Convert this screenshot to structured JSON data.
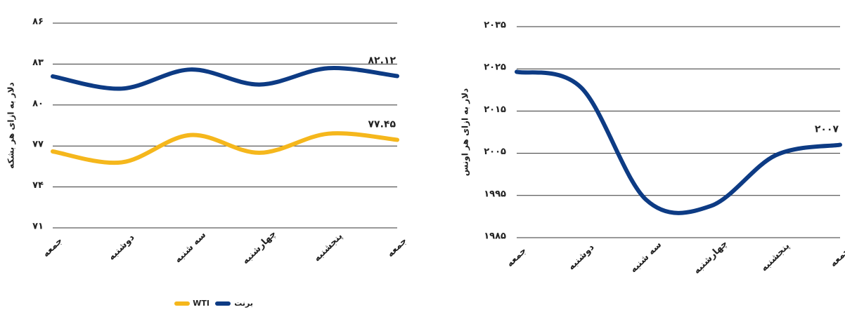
{
  "chart_data": [
    {
      "type": "line",
      "y_label": "دلار به ازای هر بشکه",
      "categories": [
        "جمعه",
        "دوشنبه",
        "سه شنبه",
        "چهارشنبه",
        "پنجشنبه",
        "جمعه"
      ],
      "series": [
        {
          "name": "برنت",
          "color": "#0d3b84",
          "values": [
            82.1,
            81.2,
            82.6,
            81.5,
            82.7,
            82.12
          ],
          "value_labels": [
            null,
            null,
            null,
            null,
            null,
            "۸۲.۱۲"
          ]
        },
        {
          "name": "WTI",
          "color": "#f5b71c",
          "values": [
            76.6,
            75.8,
            77.8,
            76.5,
            77.9,
            77.45
          ],
          "value_labels": [
            null,
            null,
            null,
            null,
            null,
            "۷۷.۴۵"
          ]
        }
      ],
      "ylim": [
        71,
        86
      ],
      "yticks": [
        {
          "value": 71,
          "label": "۷۱"
        },
        {
          "value": 74,
          "label": "۷۴"
        },
        {
          "value": 77,
          "label": "۷۷"
        },
        {
          "value": 80,
          "label": "۸۰"
        },
        {
          "value": 83,
          "label": "۸۳"
        },
        {
          "value": 86,
          "label": "۸۶"
        }
      ],
      "grid": true,
      "legend": "bottom"
    },
    {
      "type": "line",
      "y_label": "دلار به ازای هر اونس",
      "categories": [
        "جمعه",
        "دوشنبه",
        "سه شنبه",
        "چهارشنبه",
        "پنجشنبه",
        "جمعه"
      ],
      "series": [
        {
          "color": "#0d3b84",
          "values": [
            2024.3,
            2020.5,
            1994,
            1992.5,
            2004.5,
            2007
          ],
          "value_labels": [
            null,
            null,
            null,
            null,
            null,
            "۲۰۰۷"
          ]
        }
      ],
      "ylim": [
        1985,
        2035
      ],
      "yticks": [
        {
          "value": 1985,
          "label": "۱۹۸۵"
        },
        {
          "value": 1995,
          "label": "۱۹۹۵"
        },
        {
          "value": 2005,
          "label": "۲۰۰۵"
        },
        {
          "value": 2015,
          "label": "۲۰۱۵"
        },
        {
          "value": 2025,
          "label": "۲۰۲۵"
        },
        {
          "value": 2035,
          "label": "۲۰۳۵"
        }
      ],
      "grid": true
    }
  ]
}
